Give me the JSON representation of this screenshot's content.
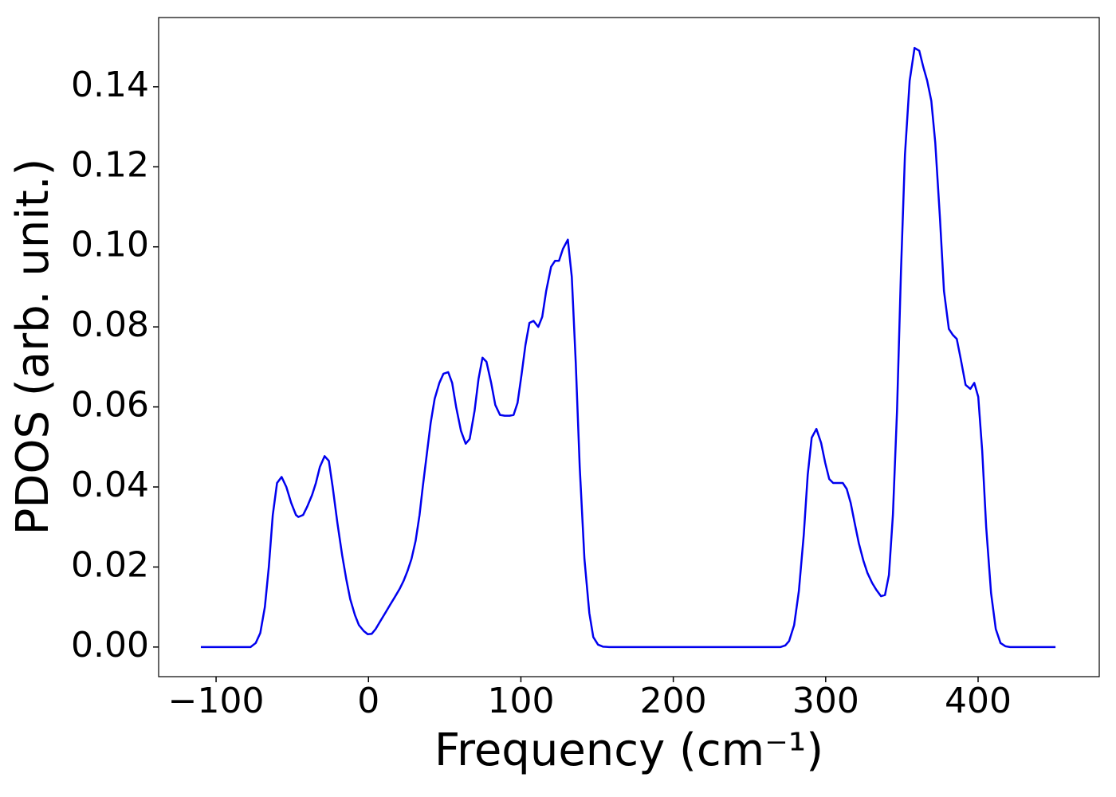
{
  "chart_data": {
    "type": "line",
    "xlabel": "Frequency (cm⁻¹)",
    "ylabel": "PDOS (arb. unit.)",
    "color": "#0000ee",
    "x": [
      -110,
      -77.4,
      -74,
      -71,
      -68,
      -65.4,
      -62.8,
      -60,
      -57,
      -53.9,
      -50.7,
      -47.6,
      -46,
      -42.9,
      -40.3,
      -37,
      -34.5,
      -31.9,
      -28.8,
      -26,
      -23.5,
      -20.4,
      -17.3,
      -14.6,
      -12,
      -8.9,
      -6.3,
      -3.1,
      -0.5,
      2.1,
      4.7,
      7.8,
      11,
      14.1,
      17.3,
      20.4,
      23,
      25.6,
      28.2,
      30.9,
      33.5,
      35.6,
      38.2,
      40.8,
      43.4,
      46.5,
      49.2,
      52.3,
      54.9,
      57.5,
      60.7,
      63.8,
      66.4,
      69.6,
      72.2,
      74.8,
      77.4,
      80.5,
      83.2,
      86.3,
      89.4,
      92.6,
      95.2,
      97.8,
      100.4,
      103,
      105.6,
      108.3,
      111.4,
      114,
      116.6,
      119.8,
      122.4,
      125,
      127.6,
      130.8,
      133.4,
      136,
      138.6,
      141.7,
      144.9,
      147.5,
      150.6,
      153.8,
      158,
      270.4,
      273.5,
      276,
      279.3,
      282.4,
      285.6,
      288.2,
      290.8,
      293.9,
      297,
      299.7,
      302.3,
      304.9,
      308,
      311.2,
      313.8,
      316.4,
      319,
      321.7,
      324.8,
      327.4,
      330.5,
      333.2,
      336.3,
      338.9,
      341.5,
      344.1,
      346.8,
      349.4,
      352,
      355.1,
      358.3,
      361.4,
      364,
      366.6,
      369.3,
      371.9,
      375,
      377.6,
      380.8,
      383.4,
      386,
      388.6,
      391.8,
      394.9,
      397.5,
      400.1,
      402.7,
      405.3,
      408.5,
      411.6,
      414.7,
      417.9,
      421,
      450.8
    ],
    "values": [
      0,
      0,
      0.001,
      0.0035,
      0.01,
      0.02,
      0.033,
      0.041,
      0.0425,
      0.04,
      0.036,
      0.033,
      0.0325,
      0.033,
      0.035,
      0.038,
      0.041,
      0.045,
      0.0477,
      0.0465,
      0.04,
      0.031,
      0.023,
      0.017,
      0.012,
      0.008,
      0.0055,
      0.004,
      0.0032,
      0.0033,
      0.0045,
      0.0065,
      0.0085,
      0.0105,
      0.0125,
      0.0145,
      0.0165,
      0.019,
      0.022,
      0.0265,
      0.033,
      0.04,
      0.048,
      0.056,
      0.062,
      0.066,
      0.0683,
      0.0687,
      0.066,
      0.06,
      0.054,
      0.0508,
      0.052,
      0.059,
      0.067,
      0.0723,
      0.0713,
      0.066,
      0.0605,
      0.058,
      0.0578,
      0.0578,
      0.058,
      0.061,
      0.068,
      0.0755,
      0.081,
      0.0815,
      0.08,
      0.0825,
      0.089,
      0.095,
      0.0965,
      0.0965,
      0.0995,
      0.1018,
      0.0925,
      0.071,
      0.045,
      0.022,
      0.0085,
      0.0025,
      0.0006,
      0.0001,
      0,
      0,
      0.0004,
      0.0015,
      0.0055,
      0.014,
      0.028,
      0.043,
      0.0523,
      0.0545,
      0.051,
      0.046,
      0.042,
      0.041,
      0.041,
      0.041,
      0.0395,
      0.036,
      0.031,
      0.026,
      0.0215,
      0.0185,
      0.016,
      0.0143,
      0.0127,
      0.013,
      0.018,
      0.033,
      0.059,
      0.094,
      0.123,
      0.1415,
      0.1497,
      0.149,
      0.145,
      0.1415,
      0.1365,
      0.126,
      0.107,
      0.089,
      0.0795,
      0.078,
      0.077,
      0.072,
      0.0655,
      0.0645,
      0.066,
      0.0625,
      0.049,
      0.03,
      0.0135,
      0.0045,
      0.001,
      0.0002,
      0,
      0
    ],
    "xlim": [
      -137.7,
      479.5
    ],
    "ylim": [
      -0.0074,
      0.1573
    ],
    "xticks": [
      {
        "value": -100,
        "label": "−100"
      },
      0,
      100,
      200,
      300,
      400
    ],
    "yticks": [
      {
        "value": 0,
        "label": "0.00"
      },
      {
        "value": 0.02,
        "label": "0.02"
      },
      {
        "value": 0.04,
        "label": "0.04"
      },
      {
        "value": 0.06,
        "label": "0.06"
      },
      {
        "value": 0.08,
        "label": "0.08"
      },
      {
        "value": 0.1,
        "label": "0.10"
      },
      {
        "value": 0.12,
        "label": "0.12"
      },
      {
        "value": 0.14,
        "label": "0.14"
      }
    ],
    "grid": false
  }
}
